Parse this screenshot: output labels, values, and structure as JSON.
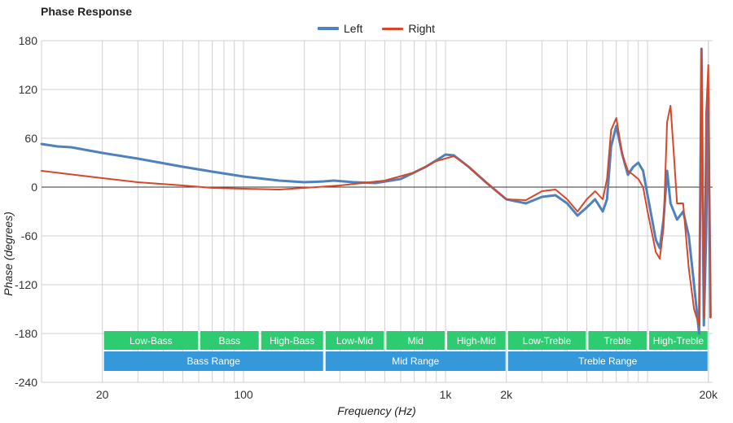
{
  "chart_data": {
    "type": "line",
    "title": "Phase Response",
    "xlabel": "Frequency (Hz)",
    "ylabel": "Phase (degrees)",
    "x_scale": "log",
    "xlim": [
      10,
      21000
    ],
    "ylim": [
      -240,
      180
    ],
    "x_ticks": [
      {
        "value": 20,
        "label": "20"
      },
      {
        "value": 100,
        "label": "100"
      },
      {
        "value": 1000,
        "label": "1k"
      },
      {
        "value": 2000,
        "label": "2k"
      },
      {
        "value": 20000,
        "label": "20k"
      }
    ],
    "y_ticks": [
      180,
      120,
      60,
      0,
      -60,
      -120,
      -180,
      -240
    ],
    "grid": true,
    "legend_position": "top-center",
    "series": [
      {
        "name": "Left",
        "color": "#4f81bd",
        "points": [
          [
            10,
            53
          ],
          [
            12,
            50
          ],
          [
            14,
            49
          ],
          [
            20,
            42
          ],
          [
            30,
            35
          ],
          [
            50,
            25
          ],
          [
            70,
            19
          ],
          [
            100,
            13
          ],
          [
            150,
            8
          ],
          [
            200,
            6
          ],
          [
            250,
            7
          ],
          [
            280,
            8
          ],
          [
            350,
            6
          ],
          [
            450,
            5
          ],
          [
            600,
            10
          ],
          [
            800,
            25
          ],
          [
            1000,
            40
          ],
          [
            1100,
            39
          ],
          [
            1300,
            25
          ],
          [
            1600,
            5
          ],
          [
            2000,
            -15
          ],
          [
            2500,
            -20
          ],
          [
            3000,
            -12
          ],
          [
            3500,
            -10
          ],
          [
            4000,
            -20
          ],
          [
            4500,
            -35
          ],
          [
            5000,
            -25
          ],
          [
            5500,
            -15
          ],
          [
            6000,
            -30
          ],
          [
            6300,
            -15
          ],
          [
            6600,
            50
          ],
          [
            7000,
            75
          ],
          [
            7500,
            40
          ],
          [
            8000,
            15
          ],
          [
            8500,
            25
          ],
          [
            9000,
            30
          ],
          [
            9500,
            20
          ],
          [
            10000,
            -10
          ],
          [
            11000,
            -65
          ],
          [
            11500,
            -75
          ],
          [
            12000,
            -40
          ],
          [
            12500,
            20
          ],
          [
            13000,
            -20
          ],
          [
            14000,
            -40
          ],
          [
            15000,
            -30
          ],
          [
            16000,
            -60
          ],
          [
            17000,
            -120
          ],
          [
            18000,
            -180
          ],
          [
            18500,
            170
          ],
          [
            19000,
            -170
          ],
          [
            19500,
            -60
          ],
          [
            20000,
            110
          ],
          [
            20500,
            -160
          ]
        ]
      },
      {
        "name": "Right",
        "color": "#d7472a",
        "points": [
          [
            10,
            20
          ],
          [
            20,
            11
          ],
          [
            30,
            6
          ],
          [
            50,
            2
          ],
          [
            70,
            -1
          ],
          [
            100,
            -2
          ],
          [
            150,
            -3
          ],
          [
            200,
            -1
          ],
          [
            300,
            2
          ],
          [
            500,
            8
          ],
          [
            700,
            18
          ],
          [
            900,
            32
          ],
          [
            1100,
            38
          ],
          [
            1300,
            25
          ],
          [
            1600,
            5
          ],
          [
            2000,
            -15
          ],
          [
            2500,
            -16
          ],
          [
            3000,
            -5
          ],
          [
            3500,
            -3
          ],
          [
            4000,
            -15
          ],
          [
            4500,
            -30
          ],
          [
            5000,
            -15
          ],
          [
            5500,
            -5
          ],
          [
            6000,
            -15
          ],
          [
            6300,
            10
          ],
          [
            6600,
            70
          ],
          [
            7000,
            85
          ],
          [
            7500,
            40
          ],
          [
            8000,
            20
          ],
          [
            8500,
            15
          ],
          [
            9000,
            10
          ],
          [
            9500,
            0
          ],
          [
            10000,
            -30
          ],
          [
            11000,
            -80
          ],
          [
            11500,
            -88
          ],
          [
            12000,
            -50
          ],
          [
            12500,
            80
          ],
          [
            13000,
            100
          ],
          [
            13500,
            40
          ],
          [
            14000,
            -20
          ],
          [
            15000,
            -20
          ],
          [
            16000,
            -100
          ],
          [
            17000,
            -150
          ],
          [
            18000,
            -170
          ],
          [
            18500,
            170
          ],
          [
            19000,
            -160
          ],
          [
            19500,
            90
          ],
          [
            20000,
            150
          ],
          [
            20500,
            -160
          ]
        ]
      }
    ],
    "bands": [
      {
        "label": "Low-Bass",
        "from": 20,
        "to": 60
      },
      {
        "label": "Bass",
        "from": 60,
        "to": 120
      },
      {
        "label": "High-Bass",
        "from": 120,
        "to": 250
      },
      {
        "label": "Low-Mid",
        "from": 250,
        "to": 500
      },
      {
        "label": "Mid",
        "from": 500,
        "to": 1000
      },
      {
        "label": "High-Mid",
        "from": 1000,
        "to": 2000
      },
      {
        "label": "Low-Treble",
        "from": 2000,
        "to": 5000
      },
      {
        "label": "Treble",
        "from": 5000,
        "to": 10000
      },
      {
        "label": "High-Treble",
        "from": 10000,
        "to": 20000
      }
    ],
    "ranges": [
      {
        "label": "Bass Range",
        "from": 20,
        "to": 250
      },
      {
        "label": "Mid Range",
        "from": 250,
        "to": 2000
      },
      {
        "label": "Treble Range",
        "from": 2000,
        "to": 20000
      }
    ],
    "band_color": "#2ecc71",
    "range_color": "#3498db"
  }
}
